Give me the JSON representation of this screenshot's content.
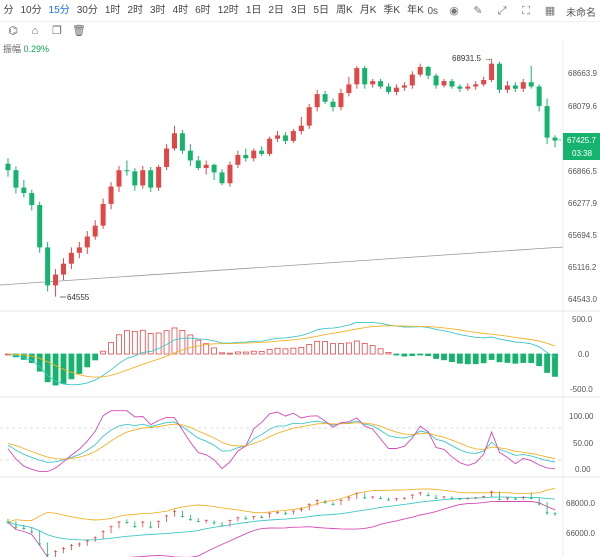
{
  "toolbar": {
    "timeframes": [
      "分",
      "10分",
      "15分",
      "30分",
      "1时",
      "2时",
      "3时",
      "4时",
      "6时",
      "12时",
      "1日",
      "2日",
      "3日",
      "5日",
      "周K",
      "月K",
      "季K",
      "年K"
    ],
    "active": "15分",
    "seconds_label": "0s",
    "right_label": "未命名"
  },
  "icons": {
    "toolbar_right": [
      "camera-icon",
      "edit-icon",
      "expand-icon",
      "fullscreen-icon",
      "more-icon"
    ],
    "toolbar2": [
      "indicator-icon",
      "lock-icon",
      "copy-icon",
      "delete-icon"
    ]
  },
  "amplitude": {
    "label": "振幅",
    "value": "0.29%"
  },
  "price_panel": {
    "axis_labels": [
      "68663.9",
      "68079.6",
      "67425.7",
      "66866.5",
      "66277.9",
      "65694.5",
      "65116.2",
      "64543.0"
    ],
    "current_price": "67425.7",
    "countdown": "03:38",
    "high_annotation": "68931.5",
    "low_annotation": "64555",
    "colors": {
      "up": "#e04848",
      "down": "#16b36e",
      "price_tag": "#16b36e"
    }
  },
  "macd_panel": {
    "axis_labels": [
      "500.0",
      "0.0",
      "-500.0"
    ]
  },
  "kdj_panel": {
    "axis_labels": [
      "100.00",
      "50.00",
      "0.00"
    ]
  },
  "boll_panel": {
    "axis_labels": [
      "68000.0",
      "66000.0"
    ]
  },
  "chart_data": {
    "type": "candlestick",
    "ylim": [
      64400,
      69000
    ],
    "candles": [
      [
        67000,
        67100,
        66760,
        66880
      ],
      [
        66880,
        66950,
        66450,
        66560
      ],
      [
        66560,
        66700,
        66380,
        66460
      ],
      [
        66460,
        66520,
        66140,
        66240
      ],
      [
        66240,
        66300,
        65360,
        65460
      ],
      [
        65460,
        65560,
        64650,
        64760
      ],
      [
        64760,
        65060,
        64555,
        64960
      ],
      [
        64960,
        65260,
        64860,
        65160
      ],
      [
        65160,
        65460,
        65060,
        65360
      ],
      [
        65360,
        65560,
        65260,
        65460
      ],
      [
        65460,
        65760,
        65340,
        65660
      ],
      [
        65660,
        65960,
        65600,
        65860
      ],
      [
        65860,
        66360,
        65800,
        66260
      ],
      [
        66260,
        66660,
        66160,
        66580
      ],
      [
        66580,
        66960,
        66480,
        66880
      ],
      [
        66880,
        67060,
        66780,
        66860
      ],
      [
        66860,
        66920,
        66500,
        66600
      ],
      [
        66600,
        66960,
        66540,
        66880
      ],
      [
        66880,
        66940,
        66480,
        66560
      ],
      [
        66560,
        66980,
        66500,
        66940
      ],
      [
        66940,
        67360,
        66880,
        67280
      ],
      [
        67280,
        67700,
        67240,
        67560
      ],
      [
        67560,
        67620,
        67180,
        67240
      ],
      [
        67240,
        67360,
        66960,
        67060
      ],
      [
        67060,
        67140,
        66880,
        66920
      ],
      [
        66920,
        67060,
        66800,
        66980
      ],
      [
        66980,
        67000,
        66700,
        66840
      ],
      [
        66840,
        66900,
        66600,
        66640
      ],
      [
        66640,
        67040,
        66580,
        66980
      ],
      [
        66980,
        67240,
        66920,
        67160
      ],
      [
        67160,
        67280,
        67040,
        67100
      ],
      [
        67100,
        67280,
        67040,
        67240
      ],
      [
        67240,
        67320,
        67140,
        67180
      ],
      [
        67180,
        67500,
        67140,
        67460
      ],
      [
        67460,
        67600,
        67400,
        67520
      ],
      [
        67520,
        67580,
        67360,
        67420
      ],
      [
        67420,
        67640,
        67380,
        67600
      ],
      [
        67600,
        67860,
        67540,
        67700
      ],
      [
        67700,
        68100,
        67640,
        68040
      ],
      [
        68040,
        68360,
        67960,
        68280
      ],
      [
        68280,
        68340,
        68100,
        68140
      ],
      [
        68140,
        68200,
        67960,
        68040
      ],
      [
        68040,
        68380,
        67980,
        68300
      ],
      [
        68300,
        68600,
        68240,
        68460
      ],
      [
        68460,
        68800,
        68380,
        68760
      ],
      [
        68760,
        68800,
        68380,
        68460
      ],
      [
        68460,
        68560,
        68400,
        68520
      ],
      [
        68520,
        68560,
        68380,
        68420
      ],
      [
        68420,
        68480,
        68280,
        68320
      ],
      [
        68320,
        68460,
        68260,
        68400
      ],
      [
        68400,
        68500,
        68340,
        68440
      ],
      [
        68440,
        68700,
        68380,
        68640
      ],
      [
        68640,
        68840,
        68600,
        68780
      ],
      [
        68780,
        68800,
        68560,
        68620
      ],
      [
        68620,
        68660,
        68380,
        68440
      ],
      [
        68440,
        68560,
        68400,
        68520
      ],
      [
        68520,
        68560,
        68380,
        68420
      ],
      [
        68420,
        68460,
        68320,
        68380
      ],
      [
        68380,
        68480,
        68340,
        68420
      ],
      [
        68420,
        68520,
        68360,
        68460
      ],
      [
        68460,
        68600,
        68420,
        68540
      ],
      [
        68540,
        68931.5,
        68500,
        68840
      ],
      [
        68840,
        68880,
        68300,
        68360
      ],
      [
        68360,
        68520,
        68300,
        68440
      ],
      [
        68440,
        68500,
        68320,
        68380
      ],
      [
        68380,
        68560,
        68320,
        68500
      ],
      [
        68500,
        68800,
        68380,
        68420
      ],
      [
        68420,
        68460,
        67960,
        68060
      ],
      [
        68060,
        68200,
        67360,
        67480
      ],
      [
        67480,
        67520,
        67300,
        67425.7
      ]
    ]
  }
}
